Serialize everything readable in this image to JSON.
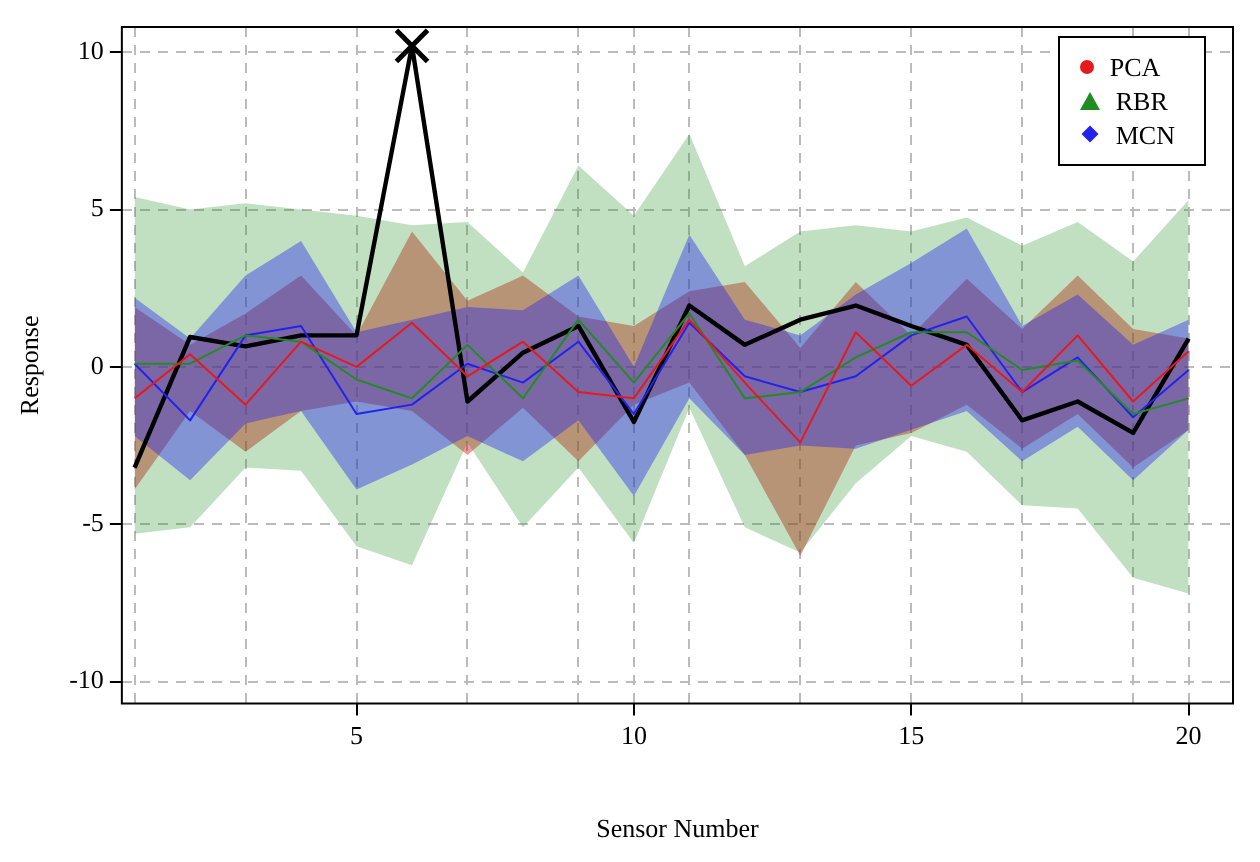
{
  "chart_data": {
    "type": "line",
    "xlabel": "Sensor Number",
    "ylabel": "Response",
    "x": [
      1,
      2,
      3,
      4,
      5,
      6,
      7,
      8,
      9,
      10,
      11,
      12,
      13,
      14,
      15,
      16,
      17,
      18,
      19,
      20
    ],
    "xlim": [
      0.77,
      20.8
    ],
    "ylim": [
      -10.7,
      10.8
    ],
    "xticks": [
      {
        "value": 1,
        "label": null
      },
      {
        "value": 3,
        "label": null
      },
      5,
      {
        "value": 7,
        "label": null
      },
      {
        "value": 9,
        "label": null
      },
      10,
      {
        "value": 11,
        "label": null
      },
      {
        "value": 13,
        "label": null
      },
      15,
      {
        "value": 17,
        "label": null
      },
      {
        "value": 19,
        "label": null
      },
      20
    ],
    "yticks": [
      -10,
      -5,
      0,
      5,
      10
    ],
    "grid": true,
    "legend": "top right",
    "line_style": "solid",
    "series": [
      {
        "name": "PCA",
        "color": "#e41a1c",
        "values": [
          -1.0,
          0.4,
          -1.2,
          0.8,
          0.0,
          1.4,
          -0.3,
          0.8,
          -0.8,
          -1.0,
          1.5,
          -0.5,
          -2.4,
          1.1,
          -0.6,
          0.7,
          -0.8,
          1.0,
          -1.1,
          0.5
        ],
        "lower": [
          -3.9,
          -1.4,
          -2.7,
          -1.4,
          -1.1,
          -1.4,
          -2.8,
          -1.3,
          -3.0,
          -1.2,
          -0.5,
          -2.8,
          -6.0,
          -2.5,
          -2.1,
          -1.2,
          -2.6,
          -1.5,
          -3.2,
          -2.0
        ],
        "upper": [
          1.9,
          0.7,
          1.7,
          2.9,
          1.0,
          4.3,
          2.1,
          2.9,
          1.6,
          1.3,
          2.4,
          2.7,
          0.6,
          2.7,
          1.0,
          2.8,
          1.2,
          2.9,
          1.2,
          0.9
        ]
      },
      {
        "name": "RBR",
        "color": "#228b22",
        "values": [
          0.1,
          0.1,
          1.0,
          0.8,
          -0.4,
          -1.0,
          0.7,
          -1.0,
          1.5,
          -0.5,
          1.7,
          -1.0,
          -0.8,
          0.3,
          1.1,
          1.1,
          -0.1,
          0.2,
          -1.5,
          -1.0
        ],
        "lower": [
          -5.3,
          -5.1,
          -3.2,
          -3.3,
          -5.7,
          -6.3,
          -2.4,
          -5.1,
          -3.2,
          -5.6,
          -1.3,
          -5.1,
          -5.9,
          -3.7,
          -2.2,
          -2.7,
          -4.4,
          -4.5,
          -6.7,
          -7.2
        ],
        "upper": [
          5.4,
          5.0,
          5.2,
          5.0,
          4.8,
          4.5,
          4.6,
          3.0,
          6.4,
          4.8,
          7.4,
          3.2,
          4.3,
          4.5,
          4.3,
          4.75,
          3.85,
          4.6,
          3.35,
          5.3
        ]
      },
      {
        "name": "MCN",
        "color": "#2222ee",
        "values": [
          0.1,
          -1.7,
          1.0,
          1.3,
          -1.5,
          -1.2,
          0.1,
          -0.5,
          0.8,
          -1.5,
          1.4,
          -0.3,
          -0.8,
          -0.3,
          1.0,
          1.6,
          -0.8,
          0.3,
          -1.6,
          -0.1
        ],
        "lower": [
          -2.2,
          -3.6,
          -1.8,
          -1.4,
          -3.9,
          -3.1,
          -2.2,
          -3.0,
          -1.7,
          -4.1,
          -1.0,
          -2.8,
          -2.5,
          -2.6,
          -2.0,
          -1.4,
          -3.0,
          -1.9,
          -3.6,
          -2.0
        ],
        "upper": [
          2.2,
          0.9,
          2.9,
          4.0,
          1.1,
          1.5,
          1.9,
          1.8,
          2.9,
          0.0,
          4.2,
          1.5,
          1.0,
          2.3,
          3.3,
          4.4,
          1.3,
          2.3,
          0.7,
          1.5
        ]
      },
      {
        "color": "#000000",
        "marker": "none",
        "values": [
          -3.2,
          0.95,
          0.65,
          1.0,
          1.0,
          10.2,
          -1.1,
          0.45,
          1.3,
          -1.75,
          1.95,
          0.7,
          1.5,
          1.95,
          1.3,
          0.7,
          -1.7,
          -1.1,
          -2.1,
          0.9
        ]
      },
      {
        "type": "scatter",
        "color": "#000000",
        "marker": "cross",
        "x": [
          6
        ],
        "values": [
          10.2
        ]
      }
    ]
  }
}
